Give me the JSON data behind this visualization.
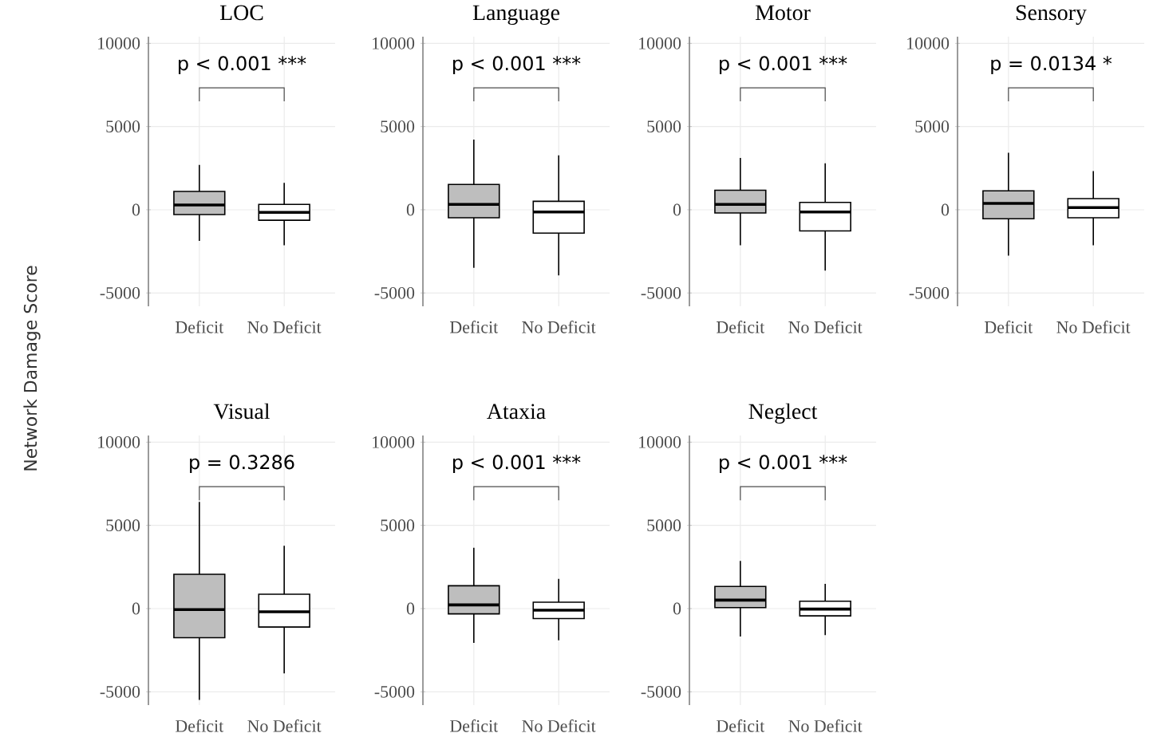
{
  "chart_data": [
    {
      "type": "box",
      "title": "LOC",
      "ylabel": "Network Damage Score",
      "categories": [
        "Deficit",
        "No Deficit"
      ],
      "colors": [
        "#bebebe",
        "#ffffff"
      ],
      "ylim": [
        -5800,
        10400
      ],
      "yticks": [
        -5000,
        0,
        5000,
        10000
      ],
      "grid": true,
      "annotations": [
        "p < 0.001 ***"
      ],
      "boxes": [
        {
          "low": -1870,
          "q1": -290,
          "median": 290,
          "q3": 1100,
          "high": 2700
        },
        {
          "low": -2130,
          "q1": -630,
          "median": -160,
          "q3": 320,
          "high": 1620
        }
      ]
    },
    {
      "type": "box",
      "title": "Language",
      "categories": [
        "Deficit",
        "No Deficit"
      ],
      "colors": [
        "#bebebe",
        "#ffffff"
      ],
      "ylim": [
        -5800,
        10400
      ],
      "yticks": [
        -5000,
        0,
        5000,
        10000
      ],
      "grid": true,
      "annotations": [
        "p < 0.001 ***"
      ],
      "boxes": [
        {
          "low": -3490,
          "q1": -480,
          "median": 320,
          "q3": 1520,
          "high": 4220
        },
        {
          "low": -3940,
          "q1": -1400,
          "median": -130,
          "q3": 510,
          "high": 3270
        }
      ]
    },
    {
      "type": "box",
      "title": "Motor",
      "categories": [
        "Deficit",
        "No Deficit"
      ],
      "colors": [
        "#bebebe",
        "#ffffff"
      ],
      "ylim": [
        -5800,
        10400
      ],
      "yticks": [
        -5000,
        0,
        5000,
        10000
      ],
      "grid": true,
      "annotations": [
        "p < 0.001 ***"
      ],
      "boxes": [
        {
          "low": -2130,
          "q1": -190,
          "median": 320,
          "q3": 1170,
          "high": 3110
        },
        {
          "low": -3650,
          "q1": -1270,
          "median": -130,
          "q3": 440,
          "high": 2790
        }
      ]
    },
    {
      "type": "box",
      "title": "Sensory",
      "categories": [
        "Deficit",
        "No Deficit"
      ],
      "colors": [
        "#bebebe",
        "#ffffff"
      ],
      "ylim": [
        -5800,
        10400
      ],
      "yticks": [
        -5000,
        0,
        5000,
        10000
      ],
      "grid": true,
      "annotations": [
        "p = 0.0134 *"
      ],
      "boxes": [
        {
          "low": -2760,
          "q1": -540,
          "median": 380,
          "q3": 1140,
          "high": 3430
        },
        {
          "low": -2130,
          "q1": -480,
          "median": 130,
          "q3": 670,
          "high": 2320
        }
      ]
    },
    {
      "type": "box",
      "title": "Visual",
      "categories": [
        "Deficit",
        "No Deficit"
      ],
      "colors": [
        "#bebebe",
        "#ffffff"
      ],
      "ylim": [
        -5800,
        10400
      ],
      "yticks": [
        -5000,
        0,
        5000,
        10000
      ],
      "grid": true,
      "annotations": [
        "p = 0.3286"
      ],
      "boxes": [
        {
          "low": -5490,
          "q1": -1750,
          "median": -60,
          "q3": 2060,
          "high": 6410
        },
        {
          "low": -3900,
          "q1": -1110,
          "median": -190,
          "q3": 860,
          "high": 3780
        }
      ]
    },
    {
      "type": "box",
      "title": "Ataxia",
      "categories": [
        "Deficit",
        "No Deficit"
      ],
      "colors": [
        "#bebebe",
        "#ffffff"
      ],
      "ylim": [
        -5800,
        10400
      ],
      "yticks": [
        -5000,
        0,
        5000,
        10000
      ],
      "grid": true,
      "annotations": [
        "p < 0.001 ***"
      ],
      "boxes": [
        {
          "low": -2060,
          "q1": -320,
          "median": 220,
          "q3": 1370,
          "high": 3650
        },
        {
          "low": -1900,
          "q1": -600,
          "median": -100,
          "q3": 380,
          "high": 1780
        }
      ]
    },
    {
      "type": "box",
      "title": "Neglect",
      "categories": [
        "Deficit",
        "No Deficit"
      ],
      "colors": [
        "#bebebe",
        "#ffffff"
      ],
      "ylim": [
        -5800,
        10400
      ],
      "yticks": [
        -5000,
        0,
        5000,
        10000
      ],
      "grid": true,
      "annotations": [
        "p < 0.001 ***"
      ],
      "boxes": [
        {
          "low": -1680,
          "q1": 60,
          "median": 510,
          "q3": 1330,
          "high": 2860
        },
        {
          "low": -1590,
          "q1": -440,
          "median": -30,
          "q3": 440,
          "high": 1490
        }
      ]
    }
  ]
}
